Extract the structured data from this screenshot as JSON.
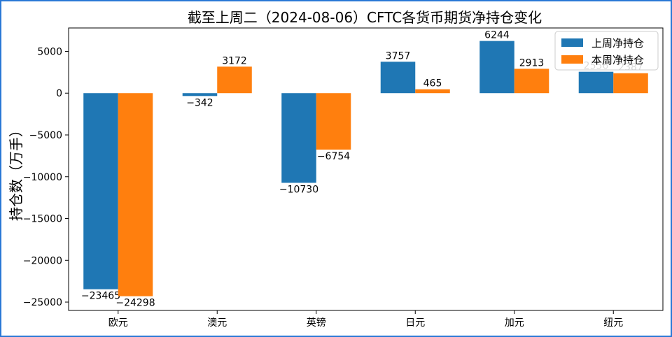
{
  "chart_data": {
    "type": "bar",
    "title": "截至上周二（2024-08-06）CFTC各货币期货净持仓变化",
    "ylabel": "持仓数（万手）",
    "xlabel": "",
    "categories": [
      "欧元",
      "澳元",
      "英镑",
      "日元",
      "加元",
      "纽元"
    ],
    "series": [
      {
        "name": "上周净持仓",
        "color": "#1f77b4",
        "values": [
          -23465,
          -342,
          -10730,
          3757,
          6244,
          2556
        ]
      },
      {
        "name": "本周净持仓",
        "color": "#ff7f0e",
        "values": [
          -24298,
          3172,
          -6754,
          465,
          2913,
          2387
        ]
      }
    ],
    "ylim": [
      -26000,
      7800
    ],
    "yticks": [
      -25000,
      -20000,
      -15000,
      -10000,
      -5000,
      0,
      5000
    ],
    "grid": false,
    "legend_position": "top-right"
  }
}
